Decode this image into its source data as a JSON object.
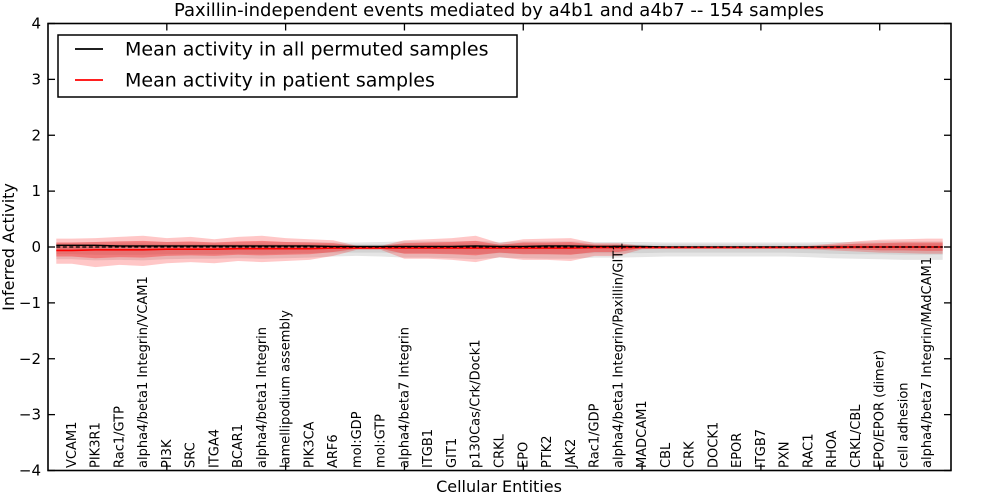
{
  "chart_data": {
    "type": "area",
    "title": "Paxillin-independent events mediated by a4b1 and a4b7 -- 154 samples",
    "xlabel": "Cellular Entities",
    "ylabel": "Inferred Activity",
    "ylim": [
      -4,
      4
    ],
    "xlim": [
      0,
      38
    ],
    "grid": false,
    "yticks": [
      -4,
      -3,
      -2,
      -1,
      0,
      1,
      2,
      3,
      4
    ],
    "ytick_labels": [
      "−4",
      "−3",
      "−2",
      "−1",
      "0",
      "1",
      "2",
      "3",
      "4"
    ],
    "xtick_positions": [
      5,
      10,
      15,
      20,
      25,
      30,
      35
    ],
    "legend": {
      "position": "upper left",
      "entries": [
        {
          "label": "Mean activity in all permuted samples",
          "color": "#000000"
        },
        {
          "label": "Mean activity in patient samples",
          "color": "#ff0000"
        }
      ]
    },
    "categories": [
      "VCAM1",
      "PIK3R1",
      "Rac1/GTP",
      "alpha4/beta1 Integrin/VCAM1",
      "PI3K",
      "SRC",
      "ITGA4",
      "BCAR1",
      "alpha4/beta1 Integrin",
      "lamellipodium assembly",
      "PIK3CA",
      "ARF6",
      "mol:GDP",
      "mol:GTP",
      "alpha4/beta7 Integrin",
      "ITGB1",
      "GIT1",
      "p130Cas/Crk/Dock1",
      "CRKL",
      "EPO",
      "PTK2",
      "JAK2",
      "Rac1/GDP",
      "alpha4/beta1 Integrin/Paxillin/GIT1",
      "MADCAM1",
      "CBL",
      "CRK",
      "DOCK1",
      "EPOR",
      "ITGB7",
      "PXN",
      "RAC1",
      "RHOA",
      "CRKL/CBL",
      "EPO/EPOR (dimer)",
      "cell adhesion",
      "alpha4/beta7 Integrin/MAdCAM1"
    ],
    "series": [
      {
        "name": "Mean activity in all permuted samples",
        "color": "#000000",
        "style": "solid",
        "width": 1.4,
        "values": [
          0.03,
          0.03,
          0.02,
          0.02,
          0.02,
          0.02,
          0.02,
          0.02,
          0.02,
          0.02,
          0.02,
          0.01,
          0.01,
          0.01,
          0.01,
          0.01,
          0.01,
          0.02,
          0.01,
          0.01,
          0.02,
          0.02,
          0.01,
          0.01,
          0.01,
          0.0,
          0.0,
          0.0,
          0.0,
          0.0,
          0.0,
          0.0,
          0.0,
          0.0,
          0.0,
          0.0,
          0.0
        ]
      },
      {
        "name": "Mean activity in patient samples",
        "color": "#ff0000",
        "style": "solid",
        "width": 1.6,
        "values": [
          -0.06,
          -0.05,
          -0.05,
          -0.05,
          -0.04,
          -0.04,
          -0.04,
          -0.03,
          -0.03,
          -0.03,
          -0.03,
          -0.02,
          -0.02,
          -0.02,
          -0.02,
          -0.02,
          -0.02,
          -0.02,
          -0.02,
          -0.02,
          -0.02,
          -0.02,
          -0.01,
          -0.01,
          -0.01,
          -0.01,
          -0.01,
          -0.01,
          -0.01,
          -0.01,
          -0.01,
          -0.01,
          -0.01,
          0.0,
          0.0,
          0.0,
          0.0
        ]
      },
      {
        "name": "zero-reference",
        "color": "#000000",
        "style": "dashed",
        "width": 1.2,
        "values": [
          0,
          0,
          0,
          0,
          0,
          0,
          0,
          0,
          0,
          0,
          0,
          0,
          0,
          0,
          0,
          0,
          0,
          0,
          0,
          0,
          0,
          0,
          0,
          0,
          0,
          0,
          0,
          0,
          0,
          0,
          0,
          0,
          0,
          0,
          0,
          0,
          0
        ]
      }
    ],
    "bands": [
      {
        "name": "permuted-range-outer",
        "fill": "rgba(0,0,0,0.10)",
        "upper": [
          0.08,
          0.09,
          0.1,
          0.1,
          0.09,
          0.09,
          0.08,
          0.09,
          0.1,
          0.09,
          0.09,
          0.08,
          0.08,
          0.09,
          0.1,
          0.1,
          0.1,
          0.11,
          0.09,
          0.1,
          0.1,
          0.1,
          0.09,
          0.09,
          0.09,
          0.08,
          0.08,
          0.08,
          0.08,
          0.08,
          0.08,
          0.08,
          0.09,
          0.09,
          0.1,
          0.1,
          0.1
        ],
        "lower": [
          -0.22,
          -0.24,
          -0.23,
          -0.24,
          -0.22,
          -0.21,
          -0.21,
          -0.2,
          -0.21,
          -0.2,
          -0.19,
          -0.17,
          -0.16,
          -0.17,
          -0.19,
          -0.19,
          -0.2,
          -0.22,
          -0.19,
          -0.2,
          -0.21,
          -0.21,
          -0.19,
          -0.19,
          -0.18,
          -0.17,
          -0.17,
          -0.17,
          -0.17,
          -0.17,
          -0.17,
          -0.18,
          -0.2,
          -0.21,
          -0.22,
          -0.23,
          -0.23
        ]
      },
      {
        "name": "permuted-range-inner",
        "fill": "rgba(0,0,0,0.08)",
        "upper": [
          0.05,
          0.05,
          0.06,
          0.06,
          0.05,
          0.05,
          0.05,
          0.05,
          0.06,
          0.05,
          0.05,
          0.05,
          0.05,
          0.05,
          0.06,
          0.06,
          0.06,
          0.07,
          0.05,
          0.06,
          0.06,
          0.06,
          0.05,
          0.05,
          0.05,
          0.05,
          0.05,
          0.05,
          0.05,
          0.05,
          0.05,
          0.05,
          0.05,
          0.05,
          0.06,
          0.06,
          0.06
        ],
        "lower": [
          -0.13,
          -0.14,
          -0.14,
          -0.14,
          -0.13,
          -0.13,
          -0.13,
          -0.12,
          -0.13,
          -0.12,
          -0.11,
          -0.1,
          -0.1,
          -0.1,
          -0.11,
          -0.11,
          -0.12,
          -0.13,
          -0.11,
          -0.12,
          -0.13,
          -0.13,
          -0.11,
          -0.11,
          -0.11,
          -0.1,
          -0.1,
          -0.1,
          -0.1,
          -0.1,
          -0.1,
          -0.11,
          -0.12,
          -0.13,
          -0.13,
          -0.14,
          -0.14
        ]
      },
      {
        "name": "patient-range-outer",
        "fill": "rgba(255,0,0,0.22)",
        "upper": [
          0.15,
          0.16,
          0.18,
          0.2,
          0.16,
          0.18,
          0.14,
          0.18,
          0.2,
          0.16,
          0.14,
          0.12,
          0.02,
          0.02,
          0.12,
          0.14,
          0.16,
          0.2,
          0.07,
          0.14,
          0.15,
          0.16,
          0.07,
          0.07,
          0.02,
          0.015,
          0.015,
          0.015,
          0.015,
          0.015,
          0.015,
          0.02,
          0.06,
          0.1,
          0.13,
          0.14,
          0.15
        ],
        "lower": [
          -0.3,
          -0.36,
          -0.32,
          -0.34,
          -0.29,
          -0.27,
          -0.29,
          -0.25,
          -0.27,
          -0.25,
          -0.23,
          -0.16,
          -0.05,
          -0.05,
          -0.21,
          -0.21,
          -0.23,
          -0.27,
          -0.18,
          -0.23,
          -0.23,
          -0.25,
          -0.16,
          -0.16,
          -0.04,
          -0.03,
          -0.03,
          -0.03,
          -0.03,
          -0.03,
          -0.03,
          -0.04,
          -0.06,
          -0.08,
          -0.1,
          -0.11,
          -0.12
        ]
      },
      {
        "name": "patient-range-inner",
        "fill": "rgba(255,0,0,0.30)",
        "upper": [
          0.08,
          0.09,
          0.1,
          0.11,
          0.09,
          0.1,
          0.08,
          0.1,
          0.11,
          0.09,
          0.08,
          0.07,
          0.01,
          0.01,
          0.07,
          0.08,
          0.09,
          0.11,
          0.04,
          0.08,
          0.08,
          0.09,
          0.04,
          0.04,
          0.01,
          0.01,
          0.01,
          0.01,
          0.01,
          0.01,
          0.01,
          0.01,
          0.03,
          0.06,
          0.07,
          0.08,
          0.08
        ],
        "lower": [
          -0.17,
          -0.2,
          -0.18,
          -0.19,
          -0.16,
          -0.15,
          -0.16,
          -0.14,
          -0.15,
          -0.14,
          -0.13,
          -0.09,
          -0.03,
          -0.03,
          -0.12,
          -0.12,
          -0.13,
          -0.15,
          -0.1,
          -0.13,
          -0.13,
          -0.14,
          -0.09,
          -0.09,
          -0.02,
          -0.02,
          -0.02,
          -0.02,
          -0.02,
          -0.02,
          -0.02,
          -0.02,
          -0.03,
          -0.04,
          -0.06,
          -0.06,
          -0.07
        ]
      }
    ]
  }
}
